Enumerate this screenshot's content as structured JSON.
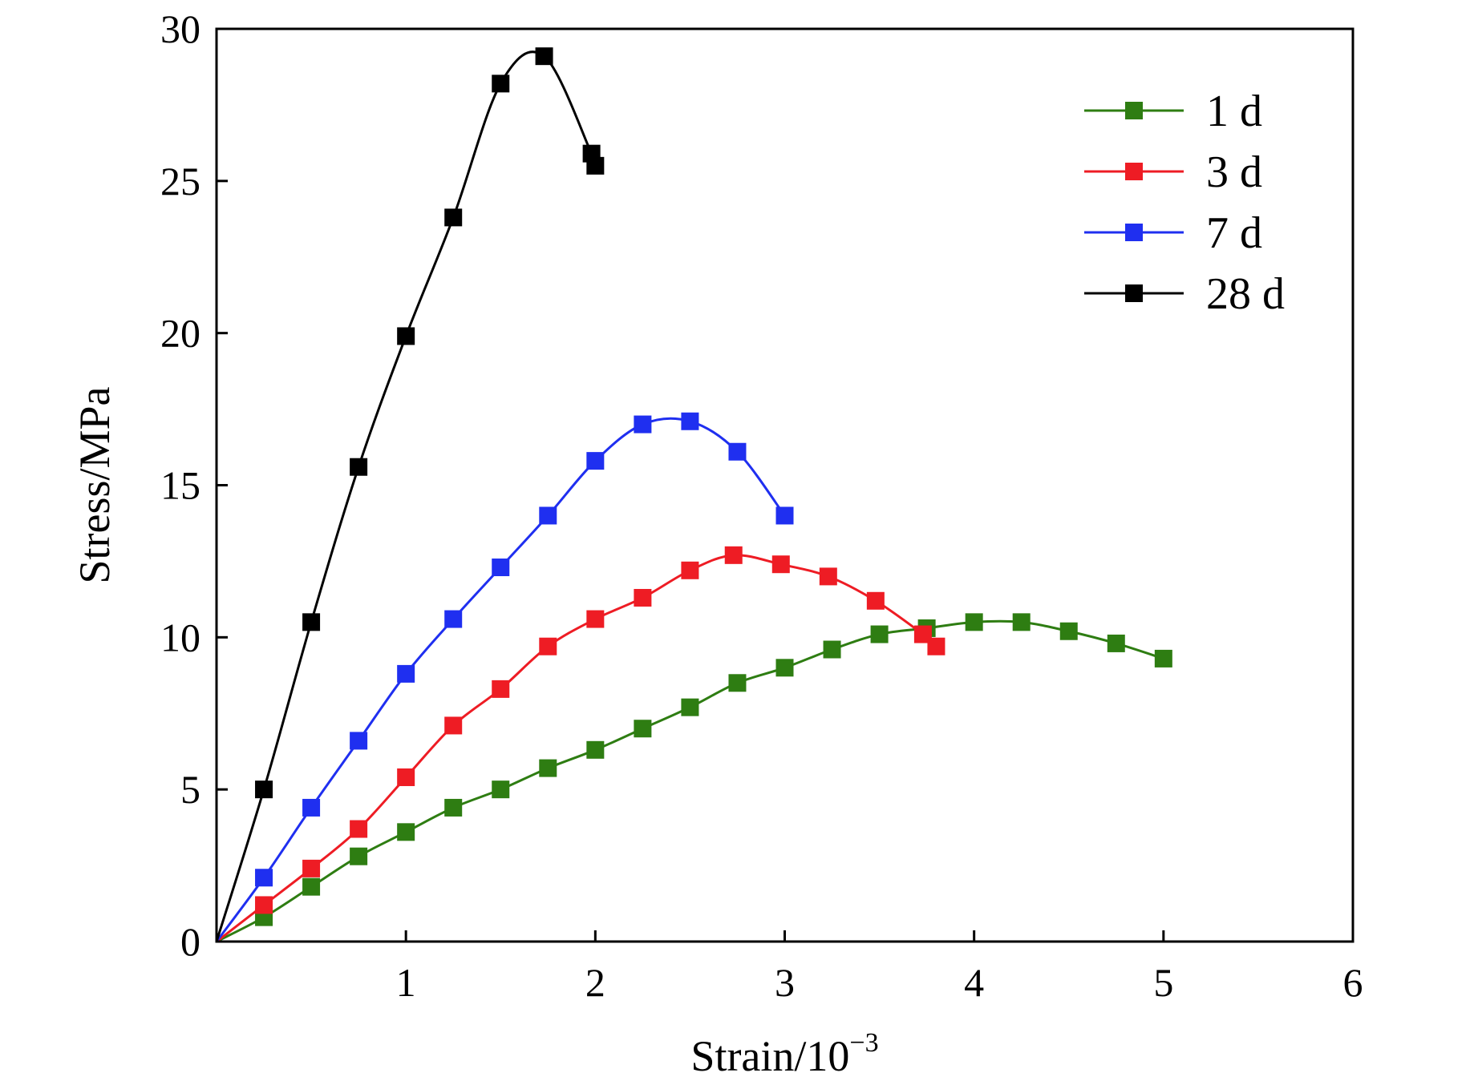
{
  "chart_data": {
    "type": "line",
    "xlabel": "Strain/10",
    "xlabel_sup": "−3",
    "ylabel": "Stress/MPa",
    "xlim": [
      0,
      6
    ],
    "ylim": [
      0,
      30
    ],
    "xticks": [
      1,
      2,
      3,
      4,
      5,
      6
    ],
    "yticks": [
      0,
      5,
      10,
      15,
      20,
      25,
      30
    ],
    "grid": false,
    "legend_position": "top-right",
    "series": [
      {
        "name": "1 d",
        "color": "#2e7d12",
        "marker": "square",
        "x": [
          0.25,
          0.5,
          0.75,
          1.0,
          1.25,
          1.5,
          1.75,
          2.0,
          2.25,
          2.5,
          2.75,
          3.0,
          3.25,
          3.5,
          3.75,
          4.0,
          4.25,
          4.5,
          4.75,
          5.0
        ],
        "y": [
          0.8,
          1.8,
          2.8,
          3.6,
          4.4,
          5.0,
          5.7,
          6.3,
          7.0,
          7.7,
          8.5,
          9.0,
          9.6,
          10.1,
          10.3,
          10.5,
          10.5,
          10.2,
          9.8,
          9.3
        ]
      },
      {
        "name": "3 d",
        "color": "#ee1c24",
        "marker": "square",
        "x": [
          0.25,
          0.5,
          0.75,
          1.0,
          1.25,
          1.5,
          1.75,
          2.0,
          2.25,
          2.5,
          2.73,
          2.98,
          3.23,
          3.48,
          3.73,
          3.8
        ],
        "y": [
          1.2,
          2.4,
          3.7,
          5.4,
          7.1,
          8.3,
          9.7,
          10.6,
          11.3,
          12.2,
          12.7,
          12.4,
          12.0,
          11.2,
          10.1,
          9.7
        ]
      },
      {
        "name": "7 d",
        "color": "#1f2ff0",
        "marker": "square",
        "x": [
          0.25,
          0.5,
          0.75,
          1.0,
          1.25,
          1.5,
          1.75,
          2.0,
          2.25,
          2.5,
          2.75,
          3.0
        ],
        "y": [
          2.1,
          4.4,
          6.6,
          8.8,
          10.6,
          12.3,
          14.0,
          15.8,
          17.0,
          17.1,
          16.1,
          14.0
        ]
      },
      {
        "name": "28 d",
        "color": "#000000",
        "marker": "square",
        "x": [
          0.25,
          0.5,
          0.75,
          1.0,
          1.25,
          1.5,
          1.73,
          1.98,
          2.0
        ],
        "y": [
          5.0,
          10.5,
          15.6,
          19.9,
          23.8,
          28.2,
          29.1,
          25.9,
          25.5
        ]
      }
    ]
  }
}
